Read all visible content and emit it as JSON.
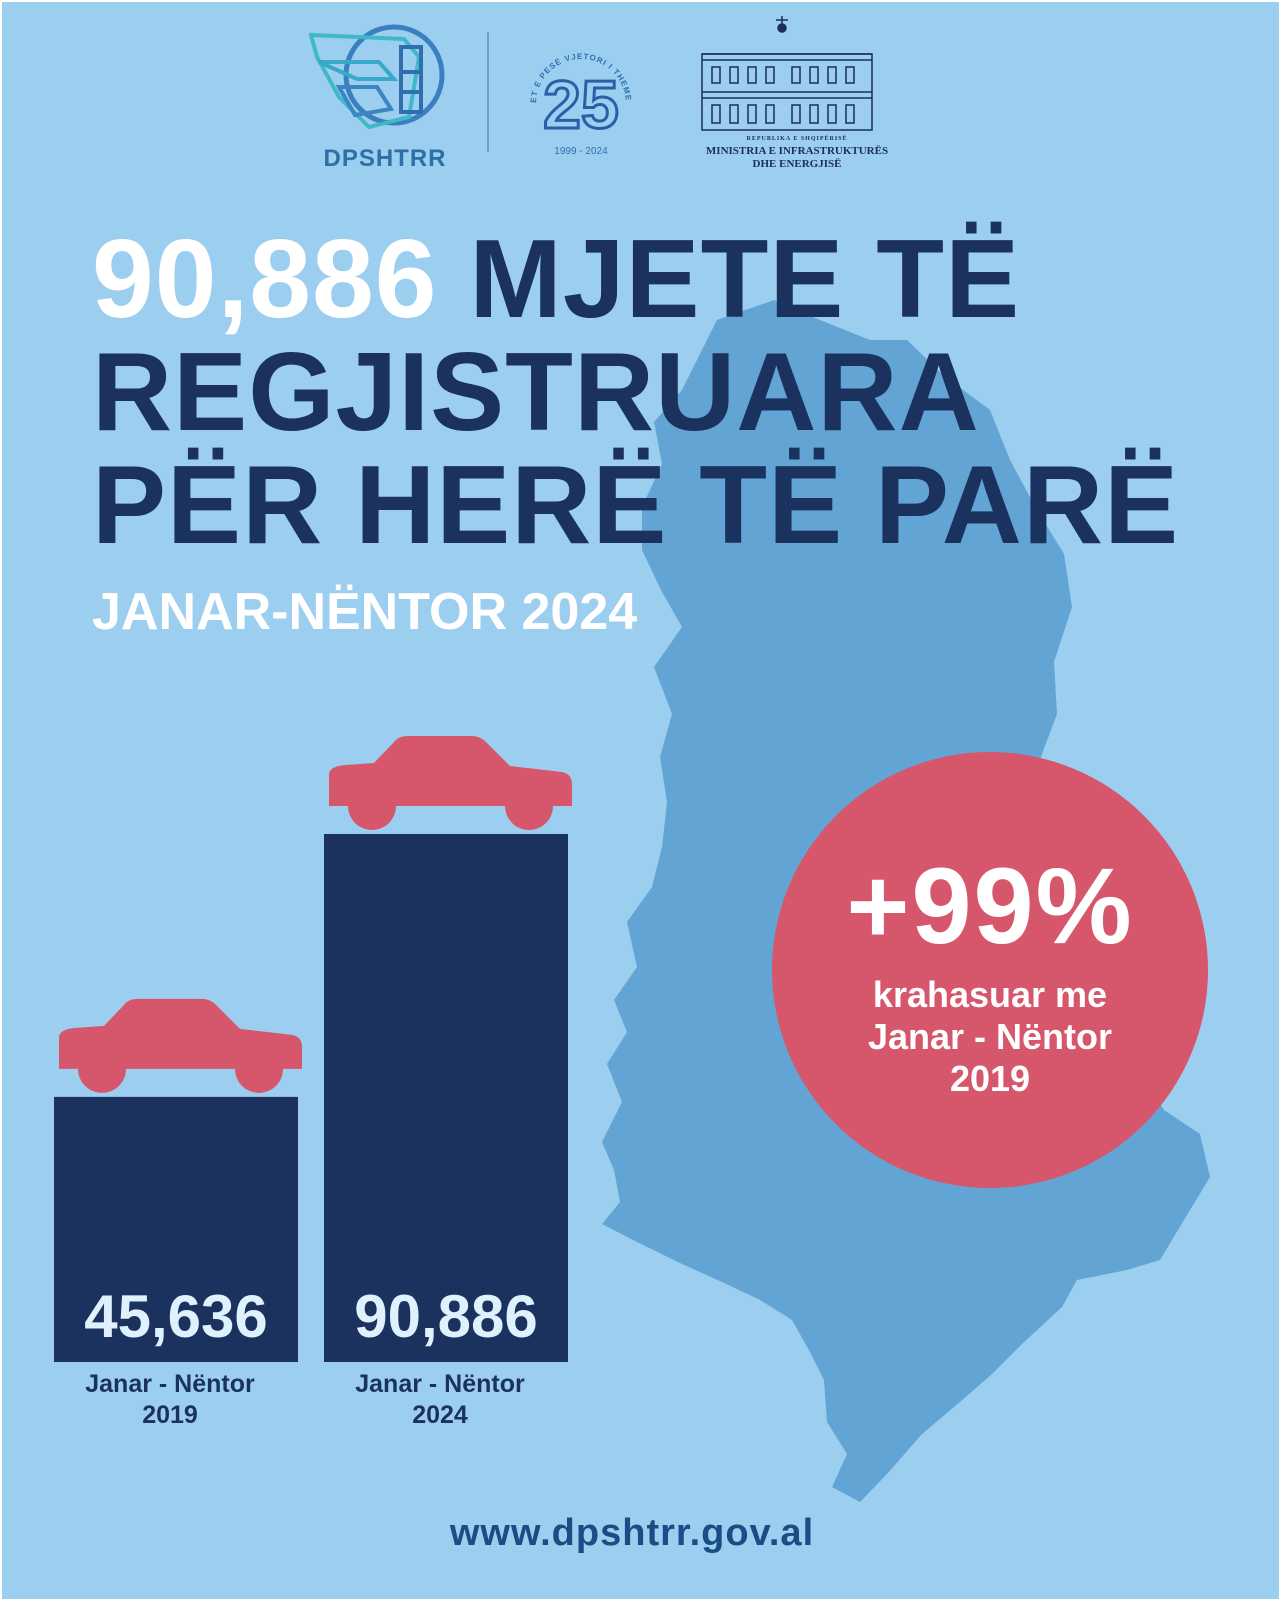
{
  "colors": {
    "background": "#9ccfef",
    "map": "#62a4d3",
    "navy": "#1b325f",
    "accent": "#d6566b",
    "white": "#ffffff"
  },
  "logos": {
    "dpshtrr": {
      "text": "DPSHTRR",
      "icon": "dpshtrr-logo-icon"
    },
    "anniversary": {
      "arc_top": "NJËZET E PESË VJETORI I THEMELIMIT",
      "number": "25",
      "years": "1999 - 2024"
    },
    "ministry": {
      "icon": "ministry-building-icon",
      "small": "REPUBLIKA E SHQIPËRISË",
      "line1": "MINISTRIA E INFRASTRUKTURËS",
      "line2": "DHE ENERGJISË"
    }
  },
  "headline": {
    "number": "90,886",
    "line1_rest": " MJETE TË",
    "line2": "REGJISTRUARA",
    "line3": "PËR HERË TË PARË"
  },
  "subtitle": "JANAR-NËNTOR 2024",
  "chart_data": {
    "type": "bar",
    "categories": [
      "Janar - Nëntor 2019",
      "Janar - Nëntor 2024"
    ],
    "category_lines": [
      [
        "Janar - Nëntor",
        "2019"
      ],
      [
        "Janar - Nëntor",
        "2024"
      ]
    ],
    "values": [
      45636,
      90886
    ],
    "value_labels": [
      "45,636",
      "90,886"
    ],
    "ylim": [
      0,
      90886
    ],
    "grid": false,
    "bar_color": "#1b325f",
    "marker_color": "#d6566b",
    "marker_icon": "car-icon"
  },
  "badge": {
    "value": "+99%",
    "caption_lines": [
      "krahasuar me",
      "Janar - Nëntor",
      "2019"
    ]
  },
  "footer": {
    "url": "www.dpshtrr.gov.al"
  }
}
